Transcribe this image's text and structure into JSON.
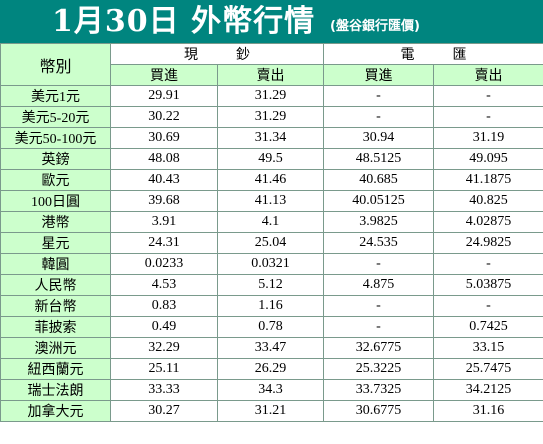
{
  "header": {
    "title": "1月30日 外幣行情",
    "subtitle": "(盤谷銀行匯價)"
  },
  "table": {
    "currency_header": "幣別",
    "groups": [
      "現鈔",
      "電匯"
    ],
    "subcolumns": [
      "買進",
      "賣出",
      "買進",
      "賣出"
    ],
    "rows": [
      {
        "name": "美元1元",
        "cash_buy": "29.91",
        "cash_sell": "31.29",
        "tt_buy": "-",
        "tt_sell": "-"
      },
      {
        "name": "美元5-20元",
        "cash_buy": "30.22",
        "cash_sell": "31.29",
        "tt_buy": "-",
        "tt_sell": "-"
      },
      {
        "name": "美元50-100元",
        "cash_buy": "30.69",
        "cash_sell": "31.34",
        "tt_buy": "30.94",
        "tt_sell": "31.19"
      },
      {
        "name": "英鎊",
        "cash_buy": "48.08",
        "cash_sell": "49.5",
        "tt_buy": "48.5125",
        "tt_sell": "49.095"
      },
      {
        "name": "歐元",
        "cash_buy": "40.43",
        "cash_sell": "41.46",
        "tt_buy": "40.685",
        "tt_sell": "41.1875"
      },
      {
        "name": "100日圓",
        "cash_buy": "39.68",
        "cash_sell": "41.13",
        "tt_buy": "40.05125",
        "tt_sell": "40.825"
      },
      {
        "name": "港幣",
        "cash_buy": "3.91",
        "cash_sell": "4.1",
        "tt_buy": "3.9825",
        "tt_sell": "4.02875"
      },
      {
        "name": "星元",
        "cash_buy": "24.31",
        "cash_sell": "25.04",
        "tt_buy": "24.535",
        "tt_sell": "24.9825"
      },
      {
        "name": "韓圓",
        "cash_buy": "0.0233",
        "cash_sell": "0.0321",
        "tt_buy": "-",
        "tt_sell": "-"
      },
      {
        "name": "人民幣",
        "cash_buy": "4.53",
        "cash_sell": "5.12",
        "tt_buy": "4.875",
        "tt_sell": "5.03875"
      },
      {
        "name": "新台幣",
        "cash_buy": "0.83",
        "cash_sell": "1.16",
        "tt_buy": "-",
        "tt_sell": "-"
      },
      {
        "name": "菲披索",
        "cash_buy": "0.49",
        "cash_sell": "0.78",
        "tt_buy": "-",
        "tt_sell": "0.7425"
      },
      {
        "name": "澳洲元",
        "cash_buy": "32.29",
        "cash_sell": "33.47",
        "tt_buy": "32.6775",
        "tt_sell": "33.15"
      },
      {
        "name": "紐西蘭元",
        "cash_buy": "25.11",
        "cash_sell": "26.29",
        "tt_buy": "25.3225",
        "tt_sell": "25.7475"
      },
      {
        "name": "瑞士法朗",
        "cash_buy": "33.33",
        "cash_sell": "34.3",
        "tt_buy": "33.7325",
        "tt_sell": "34.2125"
      },
      {
        "name": "加拿大元",
        "cash_buy": "30.27",
        "cash_sell": "31.21",
        "tt_buy": "30.6775",
        "tt_sell": "31.16"
      }
    ]
  },
  "colors": {
    "banner": "#00857f",
    "header_fill": "#ccffcc",
    "grid": "#7a9a8c"
  }
}
